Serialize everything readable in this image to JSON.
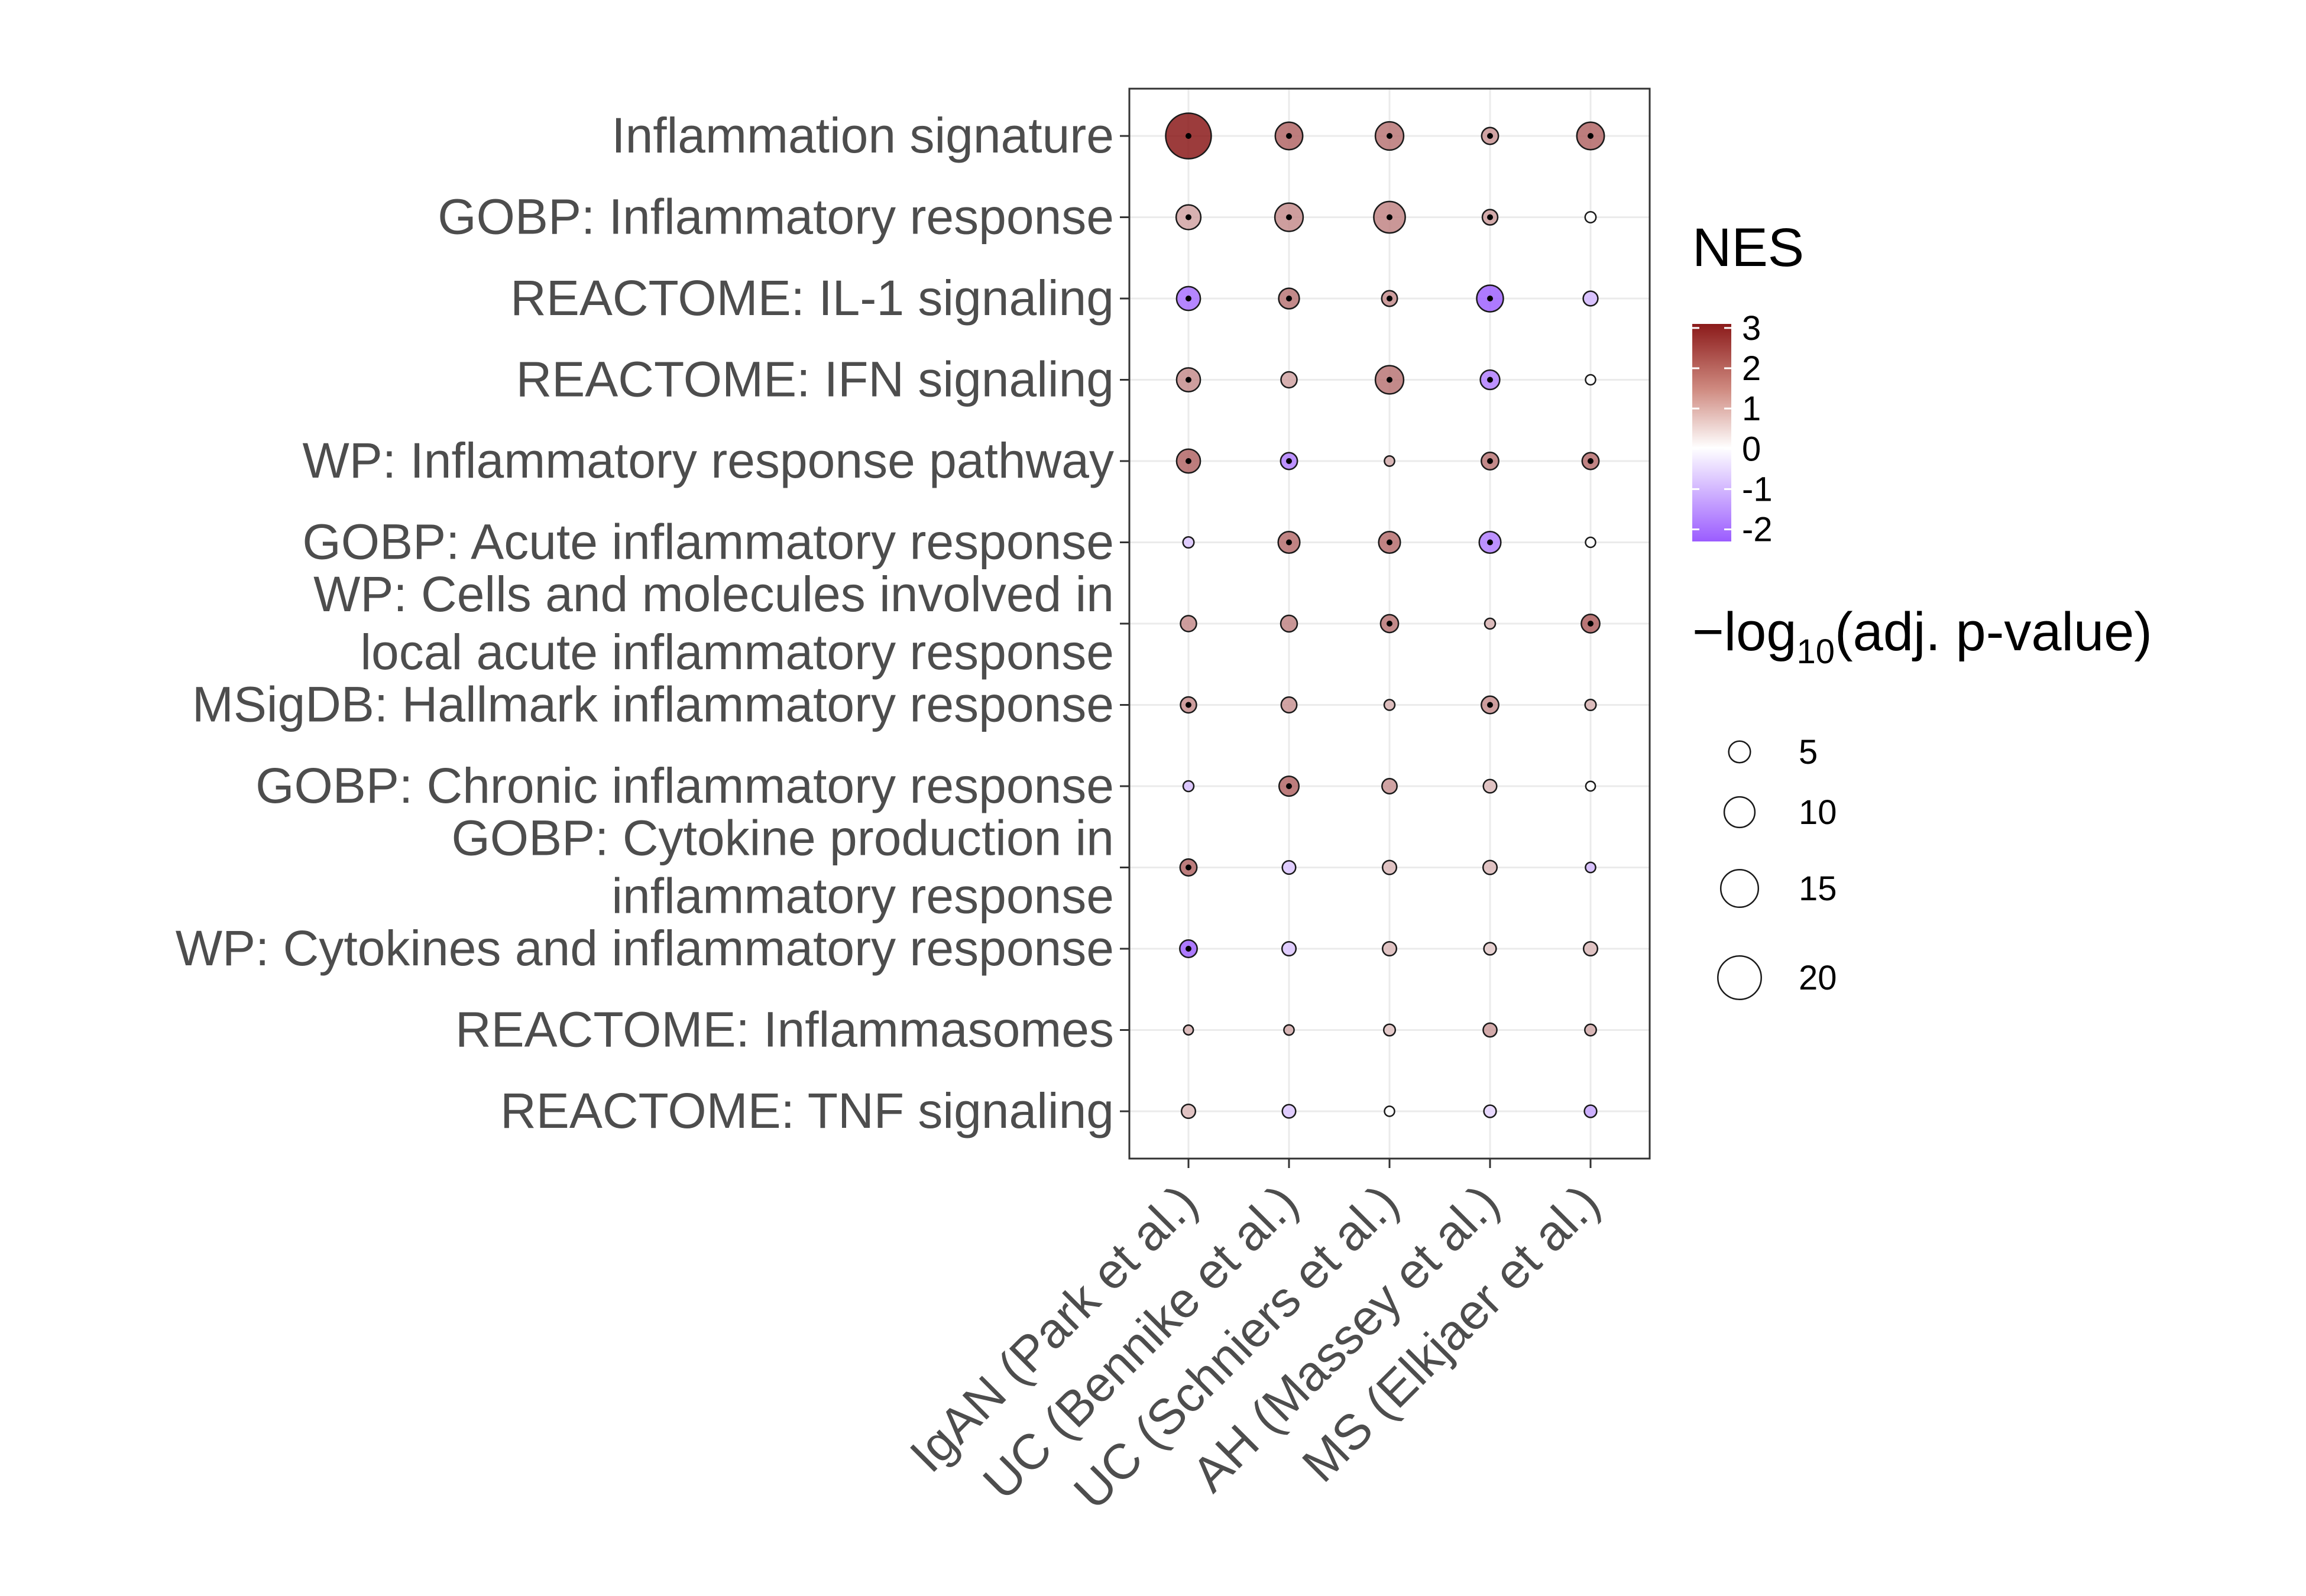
{
  "chart_data": {
    "type": "scatter",
    "subtype": "dot-plot",
    "title": "",
    "xlabel": "",
    "ylabel": "",
    "columns": [
      "IgAN (Park et al.)",
      "UC (Bennike et al.)",
      "UC (Schniers et al.)",
      "AH (Massey et al.)",
      "MS (Elkjaer et al.)"
    ],
    "rows": [
      "Inflammation signature",
      "GOBP: Inflammatory response",
      "REACTOME: IL-1 signaling",
      "REACTOME: IFN signaling",
      "WP: Inflammatory response pathway",
      "GOBP: Acute inflammatory response",
      "WP: Cells and molecules involved in\nlocal acute inflammatory response",
      "MSigDB: Hallmark inflammatory response",
      "GOBP: Chronic inflammatory response",
      "GOBP: Cytokine production in\ninflammatory response",
      "WP: Cytokines and inflammatory response",
      "REACTOME: Inflammasomes",
      "REACTOME: TNF signaling"
    ],
    "points": [
      {
        "row": 0,
        "col": 0,
        "nes": 3.0,
        "neglog10_padj": 22,
        "significant": true
      },
      {
        "row": 0,
        "col": 1,
        "nes": 2.0,
        "neglog10_padj": 8,
        "significant": true
      },
      {
        "row": 0,
        "col": 2,
        "nes": 1.8,
        "neglog10_padj": 8.5,
        "significant": true
      },
      {
        "row": 0,
        "col": 3,
        "nes": 1.4,
        "neglog10_padj": 3,
        "significant": true
      },
      {
        "row": 0,
        "col": 4,
        "nes": 2.0,
        "neglog10_padj": 8,
        "significant": true
      },
      {
        "row": 1,
        "col": 0,
        "nes": 1.2,
        "neglog10_padj": 6.5,
        "significant": true
      },
      {
        "row": 1,
        "col": 1,
        "nes": 1.5,
        "neglog10_padj": 8.5,
        "significant": true
      },
      {
        "row": 1,
        "col": 2,
        "nes": 1.6,
        "neglog10_padj": 10.5,
        "significant": true
      },
      {
        "row": 1,
        "col": 3,
        "nes": 1.3,
        "neglog10_padj": 2.5,
        "significant": true
      },
      {
        "row": 1,
        "col": 4,
        "nes": 0.0,
        "neglog10_padj": 0.4,
        "significant": false
      },
      {
        "row": 2,
        "col": 0,
        "nes": -2.0,
        "neglog10_padj": 6,
        "significant": true
      },
      {
        "row": 2,
        "col": 1,
        "nes": 1.8,
        "neglog10_padj": 4.5,
        "significant": true
      },
      {
        "row": 2,
        "col": 2,
        "nes": 1.5,
        "neglog10_padj": 2.6,
        "significant": true
      },
      {
        "row": 2,
        "col": 3,
        "nes": -2.2,
        "neglog10_padj": 7.5,
        "significant": true
      },
      {
        "row": 2,
        "col": 4,
        "nes": -1.0,
        "neglog10_padj": 2.3,
        "significant": false
      },
      {
        "row": 3,
        "col": 0,
        "nes": 1.5,
        "neglog10_padj": 6,
        "significant": true
      },
      {
        "row": 3,
        "col": 1,
        "nes": 1.2,
        "neglog10_padj": 2.7,
        "significant": false
      },
      {
        "row": 3,
        "col": 2,
        "nes": 1.8,
        "neglog10_padj": 8.5,
        "significant": true
      },
      {
        "row": 3,
        "col": 3,
        "nes": -1.8,
        "neglog10_padj": 4,
        "significant": true
      },
      {
        "row": 3,
        "col": 4,
        "nes": 0.0,
        "neglog10_padj": 0.3,
        "significant": false
      },
      {
        "row": 4,
        "col": 0,
        "nes": 2.0,
        "neglog10_padj": 6,
        "significant": true
      },
      {
        "row": 4,
        "col": 1,
        "nes": -1.8,
        "neglog10_padj": 3,
        "significant": true
      },
      {
        "row": 4,
        "col": 2,
        "nes": 1.1,
        "neglog10_padj": 1.1,
        "significant": false
      },
      {
        "row": 4,
        "col": 3,
        "nes": 1.8,
        "neglog10_padj": 3.2,
        "significant": true
      },
      {
        "row": 4,
        "col": 4,
        "nes": 1.9,
        "neglog10_padj": 3,
        "significant": true
      },
      {
        "row": 5,
        "col": 0,
        "nes": -0.8,
        "neglog10_padj": 1.3,
        "significant": false
      },
      {
        "row": 5,
        "col": 1,
        "nes": 1.9,
        "neglog10_padj": 5,
        "significant": true
      },
      {
        "row": 5,
        "col": 2,
        "nes": 1.9,
        "neglog10_padj": 5,
        "significant": true
      },
      {
        "row": 5,
        "col": 3,
        "nes": -1.8,
        "neglog10_padj": 5,
        "significant": true
      },
      {
        "row": 5,
        "col": 4,
        "nes": 0.0,
        "neglog10_padj": 0.3,
        "significant": false
      },
      {
        "row": 6,
        "col": 0,
        "nes": 1.5,
        "neglog10_padj": 2.7,
        "significant": false
      },
      {
        "row": 6,
        "col": 1,
        "nes": 1.6,
        "neglog10_padj": 2.9,
        "significant": false
      },
      {
        "row": 6,
        "col": 2,
        "nes": 1.8,
        "neglog10_padj": 3.4,
        "significant": true
      },
      {
        "row": 6,
        "col": 3,
        "nes": 1.0,
        "neglog10_padj": 1.2,
        "significant": false
      },
      {
        "row": 6,
        "col": 4,
        "nes": 2.1,
        "neglog10_padj": 3.6,
        "significant": true
      },
      {
        "row": 7,
        "col": 0,
        "nes": 1.5,
        "neglog10_padj": 2.7,
        "significant": true
      },
      {
        "row": 7,
        "col": 1,
        "nes": 1.4,
        "neglog10_padj": 2.6,
        "significant": false
      },
      {
        "row": 7,
        "col": 2,
        "nes": 1.0,
        "neglog10_padj": 1.2,
        "significant": false
      },
      {
        "row": 7,
        "col": 3,
        "nes": 1.5,
        "neglog10_padj": 3.2,
        "significant": true
      },
      {
        "row": 7,
        "col": 4,
        "nes": 1.0,
        "neglog10_padj": 1.3,
        "significant": false
      },
      {
        "row": 8,
        "col": 0,
        "nes": -0.9,
        "neglog10_padj": 1.2,
        "significant": false
      },
      {
        "row": 8,
        "col": 1,
        "nes": 2.0,
        "neglog10_padj": 4.2,
        "significant": true
      },
      {
        "row": 8,
        "col": 2,
        "nes": 1.4,
        "neglog10_padj": 2.4,
        "significant": false
      },
      {
        "row": 8,
        "col": 3,
        "nes": 0.9,
        "neglog10_padj": 0.8,
        "significant": false
      },
      {
        "row": 8,
        "col": 4,
        "nes": 0.0,
        "neglog10_padj": 0.25,
        "significant": false
      },
      {
        "row": 9,
        "col": 0,
        "nes": 2.0,
        "neglog10_padj": 3,
        "significant": true
      },
      {
        "row": 9,
        "col": 1,
        "nes": -0.8,
        "neglog10_padj": 0.8,
        "significant": false
      },
      {
        "row": 9,
        "col": 2,
        "nes": 0.9,
        "neglog10_padj": 0.9,
        "significant": false
      },
      {
        "row": 9,
        "col": 3,
        "nes": 0.9,
        "neglog10_padj": 0.9,
        "significant": false
      },
      {
        "row": 9,
        "col": 4,
        "nes": -1.0,
        "neglog10_padj": 1.1,
        "significant": false
      },
      {
        "row": 10,
        "col": 0,
        "nes": -2.2,
        "neglog10_padj": 3.2,
        "significant": true
      },
      {
        "row": 10,
        "col": 1,
        "nes": -0.8,
        "neglog10_padj": 0.9,
        "significant": false
      },
      {
        "row": 10,
        "col": 2,
        "nes": 0.9,
        "neglog10_padj": 0.9,
        "significant": false
      },
      {
        "row": 10,
        "col": 3,
        "nes": 0.7,
        "neglog10_padj": 0.6,
        "significant": false
      },
      {
        "row": 10,
        "col": 4,
        "nes": 0.9,
        "neglog10_padj": 0.9,
        "significant": false
      },
      {
        "row": 11,
        "col": 0,
        "nes": 1.0,
        "neglog10_padj": 1.0,
        "significant": false
      },
      {
        "row": 11,
        "col": 1,
        "nes": 1.1,
        "neglog10_padj": 1.1,
        "significant": false
      },
      {
        "row": 11,
        "col": 2,
        "nes": 0.8,
        "neglog10_padj": 0.5,
        "significant": false
      },
      {
        "row": 11,
        "col": 3,
        "nes": 1.3,
        "neglog10_padj": 2.0,
        "significant": false
      },
      {
        "row": 11,
        "col": 4,
        "nes": 1.1,
        "neglog10_padj": 1.4,
        "significant": false
      },
      {
        "row": 12,
        "col": 0,
        "nes": 0.9,
        "neglog10_padj": 0.9,
        "significant": false
      },
      {
        "row": 12,
        "col": 1,
        "nes": -0.8,
        "neglog10_padj": 0.8,
        "significant": false
      },
      {
        "row": 12,
        "col": 2,
        "nes": 0.0,
        "neglog10_padj": 0.3,
        "significant": false
      },
      {
        "row": 12,
        "col": 3,
        "nes": -0.6,
        "neglog10_padj": 0.6,
        "significant": false
      },
      {
        "row": 12,
        "col": 4,
        "nes": -1.3,
        "neglog10_padj": 1.6,
        "significant": false
      }
    ],
    "color_legend": {
      "title": "NES",
      "ticks": [
        "3",
        "2",
        "1",
        "0",
        "-1",
        "-2"
      ],
      "range": [
        -2.3,
        3.1
      ],
      "colors": {
        "high": "#8b1a1a",
        "mid": "#ffffff",
        "low": "#9b5cff"
      }
    },
    "size_legend": {
      "title_prefix": "−log",
      "title_subscript": "10",
      "title_body": "(adj. p-value)",
      "values": [
        5,
        10,
        15,
        20
      ]
    },
    "grid": true
  }
}
